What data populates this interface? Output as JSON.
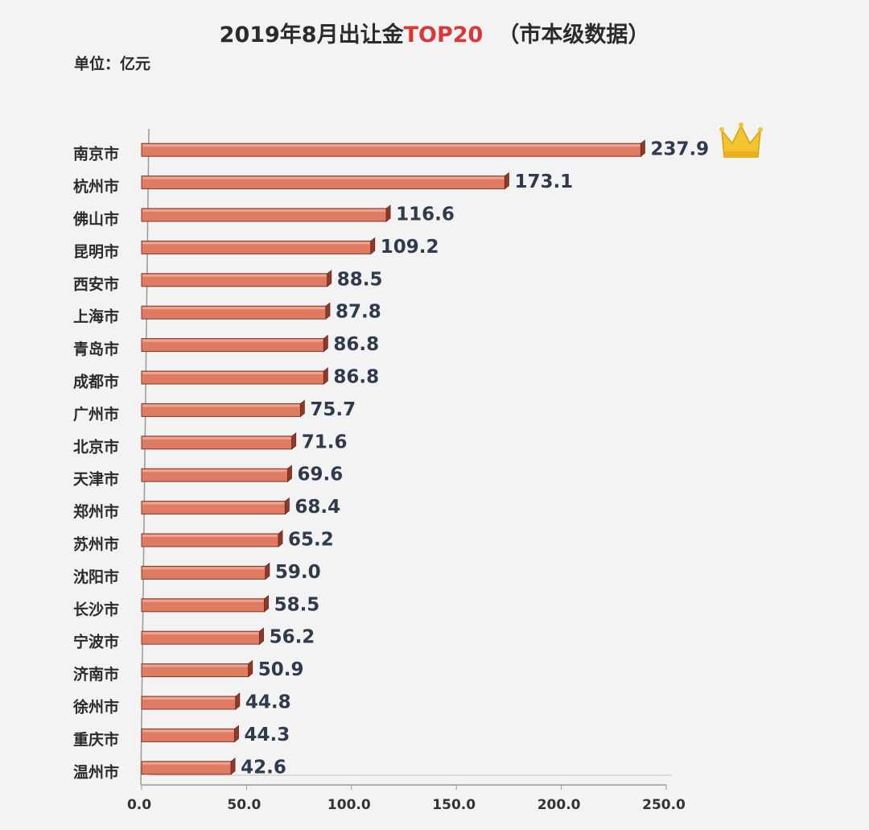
{
  "chart_data": {
    "type": "bar",
    "orientation": "horizontal",
    "title": "2019年8月出让金",
    "title_highlight": "TOP20",
    "title_note": "（市本级数据）",
    "unit_label": "单位：亿元",
    "categories": [
      "南京市",
      "杭州市",
      "佛山市",
      "昆明市",
      "西安市",
      "上海市",
      "青岛市",
      "成都市",
      "广州市",
      "北京市",
      "天津市",
      "郑州市",
      "苏州市",
      "沈阳市",
      "长沙市",
      "宁波市",
      "济南市",
      "徐州市",
      "重庆市",
      "温州市"
    ],
    "values": [
      237.9,
      173.1,
      116.6,
      109.2,
      88.5,
      87.8,
      86.8,
      86.8,
      75.7,
      71.6,
      69.6,
      68.4,
      65.2,
      59.0,
      58.5,
      56.2,
      50.9,
      44.8,
      44.3,
      42.6
    ],
    "value_labels": [
      "237.9",
      "173.1",
      "116.6",
      "109.2",
      "88.5",
      "87.8",
      "86.8",
      "86.8",
      "75.7",
      "71.6",
      "69.6",
      "68.4",
      "65.2",
      "59.0",
      "58.5",
      "56.2",
      "50.9",
      "44.8",
      "44.3",
      "42.6"
    ],
    "color": "#de7b62",
    "xlim": [
      0,
      250
    ],
    "xticks": [
      {
        "value": 0,
        "label": "0.0"
      },
      {
        "value": 50,
        "label": "50.0"
      },
      {
        "value": 100,
        "label": "100.0"
      },
      {
        "value": 150,
        "label": "150.0"
      },
      {
        "value": 200,
        "label": "200.0"
      },
      {
        "value": 250,
        "label": "250.0"
      }
    ]
  }
}
